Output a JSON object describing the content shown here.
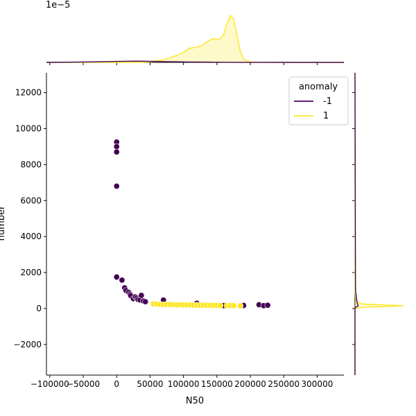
{
  "chart_data": {
    "type": "scatter",
    "title": "",
    "xlabel": "N50",
    "ylabel": "number",
    "xlim": [
      -105000,
      340000
    ],
    "ylim": [
      -3700,
      13100
    ],
    "xticks": [
      -100000,
      -50000,
      0,
      50000,
      100000,
      150000,
      200000,
      250000,
      300000
    ],
    "xtick_labels": [
      "−100000",
      "−50000",
      "0",
      "50000",
      "100000",
      "150000",
      "200000",
      "250000",
      "300000"
    ],
    "yticks": [
      -2000,
      0,
      2000,
      4000,
      6000,
      8000,
      10000,
      12000
    ],
    "ytick_labels": [
      "−2000",
      "0",
      "2000",
      "4000",
      "6000",
      "8000",
      "10000",
      "12000"
    ],
    "grid": false,
    "legend": {
      "title": "anomaly",
      "placement": "top-right",
      "entries": [
        {
          "label": "-1",
          "color": "#440154"
        },
        {
          "label": "1",
          "color": "#fde725"
        }
      ]
    },
    "series": [
      {
        "name": "-1",
        "color": "#440154",
        "points": [
          [
            0,
            9250
          ],
          [
            0,
            9000
          ],
          [
            0,
            8700
          ],
          [
            0,
            6800
          ],
          [
            0,
            1750
          ],
          [
            8000,
            1580
          ],
          [
            12000,
            1150
          ],
          [
            14000,
            1000
          ],
          [
            18000,
            900
          ],
          [
            20000,
            800
          ],
          [
            21000,
            720
          ],
          [
            25000,
            550
          ],
          [
            28000,
            650
          ],
          [
            30000,
            580
          ],
          [
            32000,
            500
          ],
          [
            35000,
            470
          ],
          [
            37000,
            730
          ],
          [
            40000,
            420
          ],
          [
            43000,
            380
          ],
          [
            70000,
            470
          ],
          [
            120000,
            290
          ],
          [
            160000,
            160
          ],
          [
            190000,
            170
          ],
          [
            213000,
            210
          ],
          [
            220000,
            160
          ],
          [
            226000,
            180
          ]
        ]
      },
      {
        "name": "1",
        "color": "#fde725",
        "points": [
          [
            55000,
            260
          ],
          [
            60000,
            250
          ],
          [
            65000,
            230
          ],
          [
            70000,
            220
          ],
          [
            75000,
            230
          ],
          [
            80000,
            220
          ],
          [
            85000,
            210
          ],
          [
            90000,
            200
          ],
          [
            95000,
            210
          ],
          [
            100000,
            200
          ],
          [
            105000,
            190
          ],
          [
            110000,
            200
          ],
          [
            115000,
            180
          ],
          [
            120000,
            190
          ],
          [
            125000,
            180
          ],
          [
            130000,
            185
          ],
          [
            135000,
            175
          ],
          [
            140000,
            170
          ],
          [
            145000,
            180
          ],
          [
            150000,
            170
          ],
          [
            155000,
            165
          ],
          [
            165000,
            160
          ],
          [
            170000,
            170
          ],
          [
            175000,
            160
          ],
          [
            185000,
            150
          ]
        ]
      }
    ],
    "marginal_top": {
      "offset_label": "1e−5",
      "x": [
        -105000,
        -60000,
        -20000,
        0,
        30000,
        50000,
        60000,
        75000,
        90000,
        100000,
        108000,
        118000,
        128000,
        138000,
        145000,
        152000,
        160000,
        165000,
        170000,
        175000,
        180000,
        185000,
        190000,
        200000,
        220000,
        260000,
        340000
      ],
      "density_pos": [
        0,
        0,
        0,
        0,
        0,
        0.01,
        0.03,
        0.07,
        0.14,
        0.2,
        0.28,
        0.3,
        0.34,
        0.44,
        0.48,
        0.45,
        0.55,
        0.78,
        0.94,
        0.88,
        0.55,
        0.22,
        0.06,
        0.01,
        0,
        0,
        0
      ],
      "density_neg": [
        0,
        0.005,
        0.015,
        0.02,
        0.025,
        0.022,
        0.02,
        0.015,
        0.012,
        0.01,
        0.009,
        0.008,
        0.006,
        0.005,
        0.004,
        0.004,
        0.003,
        0.003,
        0.003,
        0.002,
        0.002,
        0.002,
        0.002,
        0.002,
        0.001,
        0,
        0
      ]
    },
    "marginal_right": {
      "y": [
        -3700,
        0,
        80,
        120,
        160,
        200,
        250,
        400,
        1000,
        13100
      ],
      "density_pos": [
        0,
        0,
        0.2,
        0.75,
        1.0,
        0.6,
        0.15,
        0.02,
        0,
        0
      ],
      "density_neg": [
        0,
        0,
        0.02,
        0.05,
        0.07,
        0.06,
        0.05,
        0.04,
        0.01,
        0
      ]
    }
  }
}
